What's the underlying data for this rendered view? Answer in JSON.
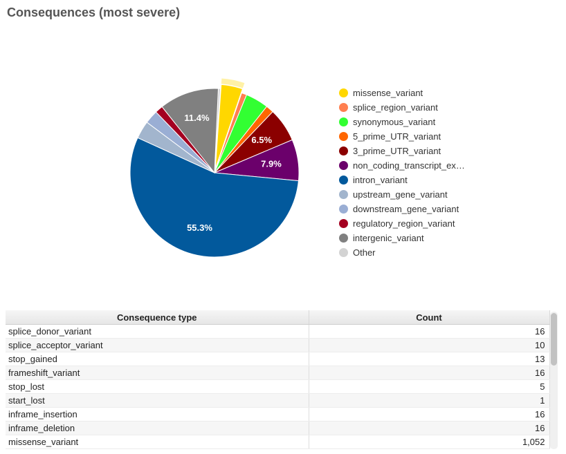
{
  "title": "Consequences (most severe)",
  "chart_data": {
    "type": "pie",
    "title": "Consequences (most severe)",
    "slices": [
      {
        "label": "Other",
        "value": 0.4,
        "color": "#d3d3d3",
        "data_label": ""
      },
      {
        "label": "missense_variant",
        "value": 4.1,
        "color": "#ffd700",
        "data_label": "",
        "exploded": true
      },
      {
        "label": "splice_region_variant",
        "value": 1.0,
        "color": "#ff7f50",
        "data_label": ""
      },
      {
        "label": "synonymous_variant",
        "value": 4.4,
        "color": "#32ff32",
        "data_label": ""
      },
      {
        "label": "5_prime_UTR_variant",
        "value": 1.5,
        "color": "#ff6600",
        "data_label": ""
      },
      {
        "label": "3_prime_UTR_variant",
        "value": 6.5,
        "color": "#8b0000",
        "data_label": "6.5%"
      },
      {
        "label": "non_coding_transcript_ex…",
        "value": 7.9,
        "color": "#6b006b",
        "data_label": "7.9%"
      },
      {
        "label": "intron_variant",
        "value": 55.3,
        "color": "#02599c",
        "data_label": "55.3%"
      },
      {
        "label": "upstream_gene_variant",
        "value": 3.4,
        "color": "#a2b5cd",
        "data_label": ""
      },
      {
        "label": "downstream_gene_variant",
        "value": 2.6,
        "color": "#9aaed4",
        "data_label": ""
      },
      {
        "label": "regulatory_region_variant",
        "value": 1.5,
        "color": "#a40020",
        "data_label": ""
      },
      {
        "label": "intergenic_variant",
        "value": 11.4,
        "color": "#808080",
        "data_label": "11.4%"
      }
    ]
  },
  "legend": [
    {
      "label": "missense_variant",
      "color": "#ffd700"
    },
    {
      "label": "splice_region_variant",
      "color": "#ff7f50"
    },
    {
      "label": "synonymous_variant",
      "color": "#32ff32"
    },
    {
      "label": "5_prime_UTR_variant",
      "color": "#ff6600"
    },
    {
      "label": "3_prime_UTR_variant",
      "color": "#8b0000"
    },
    {
      "label": "non_coding_transcript_ex…",
      "color": "#6b006b"
    },
    {
      "label": "intron_variant",
      "color": "#02599c"
    },
    {
      "label": "upstream_gene_variant",
      "color": "#a2b5cd"
    },
    {
      "label": "downstream_gene_variant",
      "color": "#9aaed4"
    },
    {
      "label": "regulatory_region_variant",
      "color": "#a40020"
    },
    {
      "label": "intergenic_variant",
      "color": "#808080"
    },
    {
      "label": "Other",
      "color": "#d3d3d3"
    }
  ],
  "table": {
    "headers": [
      "Consequence type",
      "Count"
    ],
    "rows": [
      [
        "splice_donor_variant",
        "16"
      ],
      [
        "splice_acceptor_variant",
        "10"
      ],
      [
        "stop_gained",
        "13"
      ],
      [
        "frameshift_variant",
        "16"
      ],
      [
        "stop_lost",
        "5"
      ],
      [
        "start_lost",
        "1"
      ],
      [
        "inframe_insertion",
        "16"
      ],
      [
        "inframe_deletion",
        "16"
      ],
      [
        "missense_variant",
        "1,052"
      ]
    ]
  }
}
